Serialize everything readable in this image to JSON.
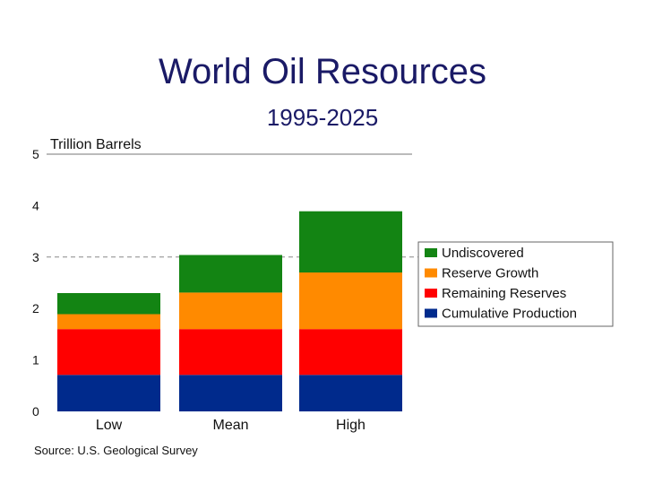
{
  "chart_data": {
    "type": "bar",
    "stacked": true,
    "title": "World Oil Resources",
    "subtitle": "1995-2025",
    "ylabel": "Trillion Barrels",
    "ylim": [
      0,
      5
    ],
    "yticks": [
      0,
      1,
      2,
      3,
      4,
      5
    ],
    "categories": [
      "Low",
      "Mean",
      "High"
    ],
    "series": [
      {
        "name": "Cumulative Production",
        "color": "#002a8c",
        "values": [
          0.71,
          0.71,
          0.71
        ]
      },
      {
        "name": "Remaining Reserves",
        "color": "#ff0000",
        "values": [
          0.89,
          0.89,
          0.89
        ]
      },
      {
        "name": "Reserve Growth",
        "color": "#ff8a00",
        "values": [
          0.29,
          0.71,
          1.1
        ]
      },
      {
        "name": "Undiscovered",
        "color": "#138413",
        "values": [
          0.41,
          0.73,
          1.19
        ]
      }
    ],
    "reference_line": {
      "value": 3,
      "style": "dashed"
    },
    "legend_position": "right",
    "source": "Source:  U.S. Geological Survey"
  }
}
